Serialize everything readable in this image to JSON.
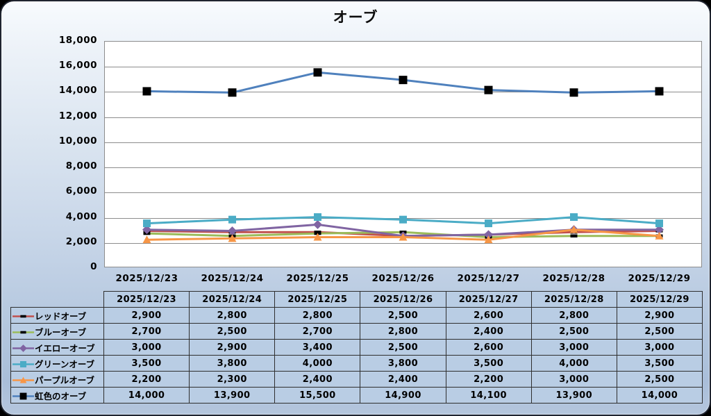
{
  "chart_data": {
    "type": "line",
    "title": "オーブ",
    "categories": [
      "2025/12/23",
      "2025/12/24",
      "2025/12/25",
      "2025/12/26",
      "2025/12/27",
      "2025/12/28",
      "2025/12/29"
    ],
    "series": [
      {
        "name": "レッドオーブ",
        "color": "#C0504D",
        "marker": "dash",
        "marker_color": "#000000",
        "marker_size": 10,
        "values": [
          2900,
          2800,
          2800,
          2500,
          2600,
          2800,
          2900
        ]
      },
      {
        "name": "ブルーオーブ",
        "color": "#9BBB59",
        "marker": "dash",
        "marker_color": "#000000",
        "marker_size": 10,
        "values": [
          2700,
          2500,
          2700,
          2800,
          2400,
          2500,
          2500
        ]
      },
      {
        "name": "イエローオーブ",
        "color": "#8064A2",
        "marker": "diamond",
        "marker_color": "#8064A2",
        "marker_size": 13,
        "values": [
          3000,
          2900,
          3400,
          2500,
          2600,
          3000,
          3000
        ]
      },
      {
        "name": "グリーンオーブ",
        "color": "#4BACC6",
        "marker": "square",
        "marker_color": "#4BACC6",
        "marker_size": 11,
        "values": [
          3500,
          3800,
          4000,
          3800,
          3500,
          4000,
          3500
        ]
      },
      {
        "name": "パープルオーブ",
        "color": "#F79646",
        "marker": "triangle",
        "marker_color": "#F79646",
        "marker_size": 12,
        "values": [
          2200,
          2300,
          2400,
          2400,
          2200,
          3000,
          2500
        ]
      },
      {
        "name": "虹色のオーブ",
        "color": "#4F81BD",
        "marker": "square",
        "marker_color": "#000000",
        "marker_size": 12,
        "values": [
          14000,
          13900,
          15500,
          14900,
          14100,
          13900,
          14000
        ]
      }
    ],
    "ylim": [
      0,
      18000
    ],
    "y_step": 2000,
    "y_tick_labels": [
      "0",
      "2,000",
      "4,000",
      "6,000",
      "8,000",
      "10,000",
      "12,000",
      "14,000",
      "16,000",
      "18,000"
    ],
    "grid": true,
    "legend_position": "table-left-column"
  },
  "colors": {
    "background_top": "#F8FBFE",
    "background_bottom": "#A9BED9",
    "plot_fill": "#FFFFFF",
    "gridline": "#8C8C8C",
    "table_cell_fill": "#B9CDE4",
    "table_border": "#2E2E2E",
    "text": "#000000"
  }
}
